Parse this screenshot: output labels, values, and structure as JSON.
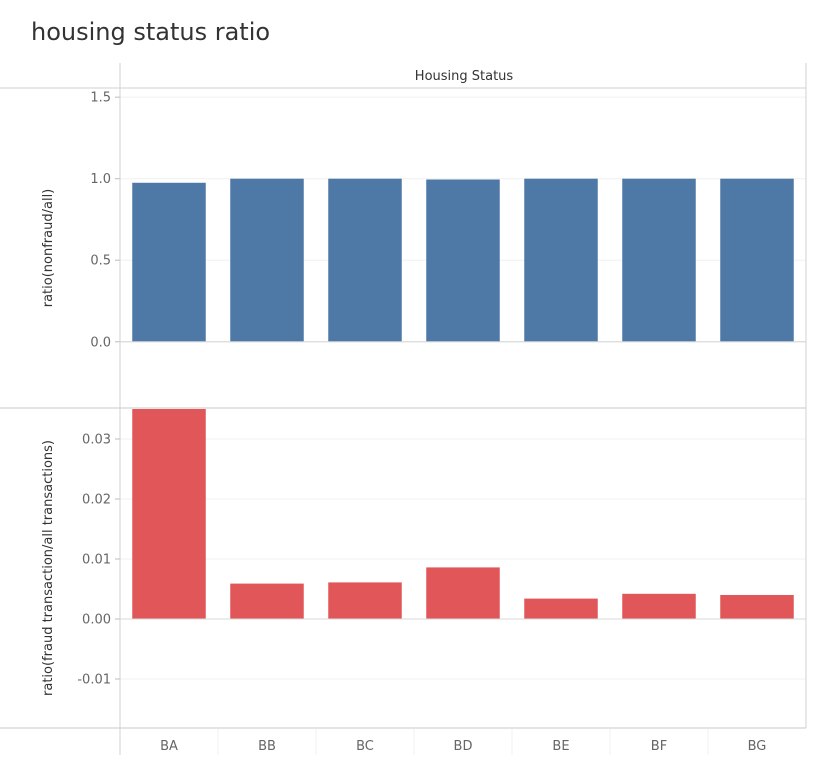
{
  "title": "housing status ratio",
  "header_label": "Housing Status",
  "chart_data": [
    {
      "type": "bar",
      "title": "",
      "xlabel": "",
      "ylabel": "ratio(nonfraud/all)",
      "categories": [
        "BA",
        "BB",
        "BC",
        "BD",
        "BE",
        "BF",
        "BG"
      ],
      "values": [
        0.975,
        1.0,
        1.0,
        0.995,
        1.0,
        1.0,
        1.0
      ],
      "ylim": [
        -0.4,
        1.55
      ],
      "yticks": [
        0.0,
        0.5,
        1.0,
        1.5
      ],
      "ytick_labels": [
        "0.0",
        "0.5",
        "1.0",
        "1.5"
      ],
      "color": "#4e79a7",
      "grid": true
    },
    {
      "type": "bar",
      "title": "",
      "xlabel": "",
      "ylabel": "ratio(fraud transaction/all transactions)",
      "categories": [
        "BA",
        "BB",
        "BC",
        "BD",
        "BE",
        "BF",
        "BG"
      ],
      "values": [
        0.035,
        0.0059,
        0.0061,
        0.0086,
        0.0034,
        0.0042,
        0.004
      ],
      "ylim": [
        -0.018,
        0.035
      ],
      "yticks": [
        -0.01,
        0.0,
        0.01,
        0.02,
        0.03
      ],
      "ytick_labels": [
        "-0.01",
        "0.00",
        "0.01",
        "0.02",
        "0.03"
      ],
      "color": "#e15759",
      "grid": true
    }
  ]
}
